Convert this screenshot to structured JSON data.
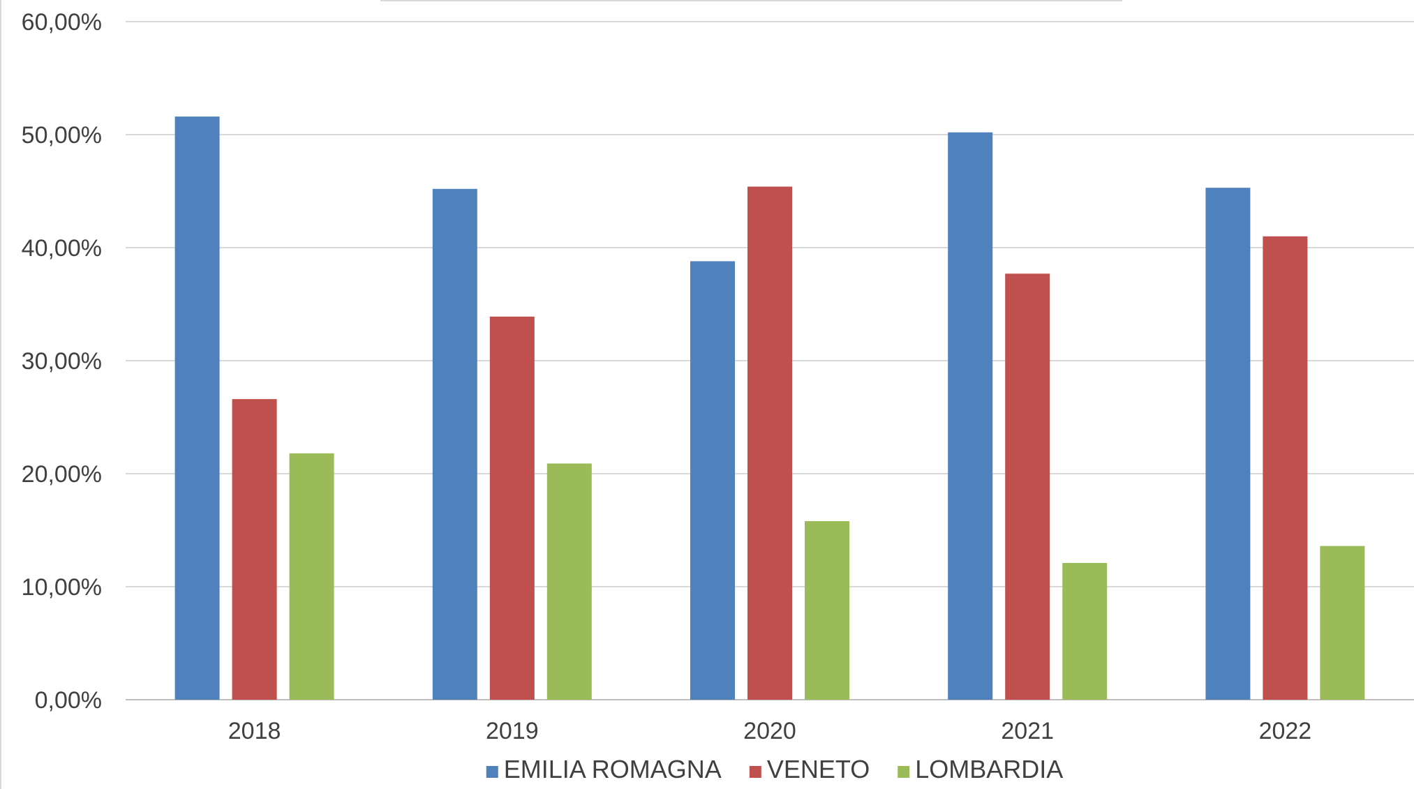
{
  "chart_data": {
    "type": "bar",
    "categories": [
      "2018",
      "2019",
      "2020",
      "2021",
      "2022"
    ],
    "series": [
      {
        "name": "EMILIA ROMAGNA",
        "color": "#4F81BD",
        "values": [
          51.6,
          45.2,
          38.8,
          50.2,
          45.3
        ]
      },
      {
        "name": "VENETO",
        "color": "#C0504D",
        "values": [
          26.6,
          33.9,
          45.4,
          37.7,
          41.0
        ]
      },
      {
        "name": "LOMBARDIA",
        "color": "#9BBB59",
        "values": [
          21.8,
          20.9,
          15.8,
          12.1,
          13.6
        ]
      }
    ],
    "yticks": [
      "0,00%",
      "10,00%",
      "20,00%",
      "30,00%",
      "40,00%",
      "50,00%",
      "60,00%"
    ],
    "ylim": [
      0,
      60
    ],
    "grid": true,
    "legend_position": "bottom",
    "title": "",
    "xlabel": "",
    "ylabel": ""
  }
}
